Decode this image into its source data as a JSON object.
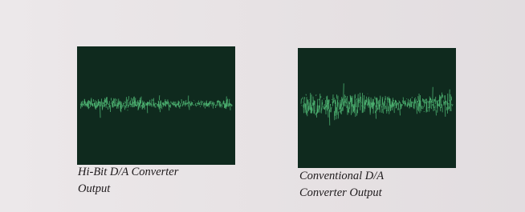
{
  "captions": [
    {
      "lines": [
        "Hi-Bit D/A Converter",
        "Output"
      ]
    },
    {
      "lines": [
        "Conventional D/A",
        "Converter Output"
      ]
    }
  ]
}
